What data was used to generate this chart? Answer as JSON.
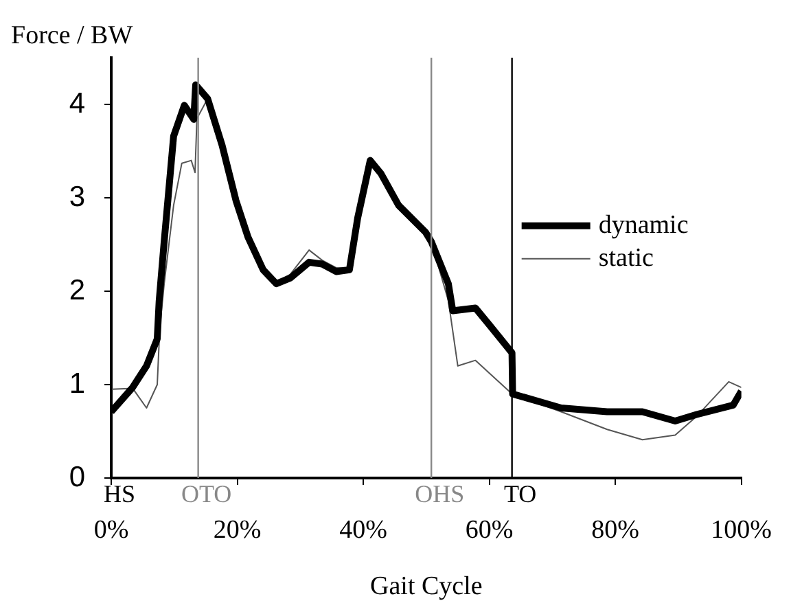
{
  "chart_data": {
    "type": "line",
    "xlabel": "Gait Cycle",
    "ylabel": "Force / BW",
    "xlim": [
      0,
      100
    ],
    "ylim": [
      0,
      4.5
    ],
    "xticks": [
      {
        "value": 0,
        "label": "0%"
      },
      {
        "value": 20,
        "label": "20%"
      },
      {
        "value": 40,
        "label": "40%"
      },
      {
        "value": 60,
        "label": "60%"
      },
      {
        "value": 80,
        "label": "80%"
      },
      {
        "value": 100,
        "label": "100%"
      }
    ],
    "yticks": [
      0,
      1,
      2,
      3,
      4
    ],
    "legend": "right",
    "marker": "none",
    "grid": false,
    "series": [
      {
        "name": "dynamic",
        "color": "#000000",
        "x": [
          0,
          3.4,
          5.6,
          7.3,
          7.6,
          8.4,
          9.9,
          11.6,
          13.1,
          13.4,
          15.3,
          17.6,
          19.8,
          21.7,
          24.1,
          26.2,
          28.4,
          31.4,
          33.5,
          35.7,
          37.8,
          39.1,
          41.1,
          42.8,
          45.6,
          49.9,
          50.8,
          53.5,
          54.2,
          57.8,
          60,
          63.6,
          63.7,
          71.4,
          78.7,
          84.3,
          89.5,
          92.9,
          98.7,
          100
        ],
        "values": [
          0.71,
          0.97,
          1.2,
          1.49,
          1.89,
          2.53,
          3.66,
          3.99,
          3.84,
          4.21,
          4.06,
          3.56,
          2.97,
          2.58,
          2.23,
          2.08,
          2.14,
          2.31,
          2.29,
          2.21,
          2.23,
          2.78,
          3.4,
          3.26,
          2.92,
          2.63,
          2.53,
          2.08,
          1.79,
          1.82,
          1.64,
          1.34,
          0.9,
          0.75,
          0.71,
          0.71,
          0.61,
          0.68,
          0.78,
          0.93
        ]
      },
      {
        "name": "static",
        "color": "#555555",
        "x": [
          0,
          3.4,
          5.6,
          7.3,
          7.7,
          8.4,
          9.9,
          11.2,
          12.7,
          13.3,
          13.6,
          15.3,
          17.6,
          19.8,
          21.7,
          24.1,
          26.2,
          28.4,
          31.4,
          33.5,
          35.7,
          37.8,
          39.1,
          41.1,
          42.8,
          45.6,
          49.9,
          50.8,
          53.5,
          55,
          57.8,
          63.6,
          71.4,
          78.7,
          84.3,
          89.5,
          92.9,
          98,
          100
        ],
        "values": [
          0.95,
          0.96,
          0.75,
          1.0,
          1.6,
          2.08,
          2.92,
          3.37,
          3.4,
          3.27,
          3.85,
          4.06,
          3.56,
          2.97,
          2.58,
          2.25,
          2.1,
          2.18,
          2.44,
          2.33,
          2.25,
          2.25,
          2.78,
          3.4,
          3.28,
          2.95,
          2.65,
          2.53,
          1.9,
          1.2,
          1.26,
          0.9,
          0.71,
          0.52,
          0.41,
          0.46,
          0.66,
          1.03,
          0.97
        ]
      }
    ],
    "ref_lines": [
      {
        "axis": "x",
        "value": 0,
        "label": "HS",
        "color": "#000000"
      },
      {
        "axis": "x",
        "value": 13.8,
        "label": "OTO",
        "color": "#888888"
      },
      {
        "axis": "x",
        "value": 50.8,
        "label": "OHS",
        "color": "#888888"
      },
      {
        "axis": "x",
        "value": 63.6,
        "label": "TO",
        "color": "#000000"
      }
    ]
  }
}
